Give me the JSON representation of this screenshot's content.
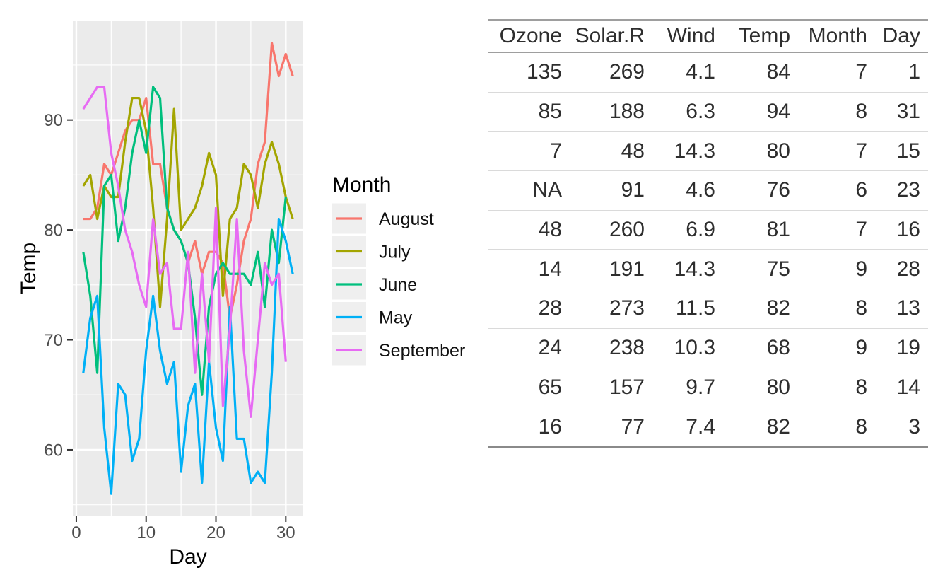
{
  "chart_data": {
    "type": "line",
    "title": "",
    "xlabel": "Day",
    "ylabel": "Temp",
    "legend_title": "Month",
    "legend_position": "right",
    "panel_background": "#EBEBEB",
    "grid_color": "#FFFFFF",
    "axis_text_color": "#4D4D4D",
    "tick_color": "#333333",
    "grid": true,
    "xlim": [
      -0.5,
      32.5
    ],
    "ylim": [
      53.95,
      99.05
    ],
    "x_major_ticks": [
      0,
      10,
      20,
      30
    ],
    "x_minor_ticks": [
      5,
      15,
      25
    ],
    "y_major_ticks": [
      60,
      70,
      80,
      90
    ],
    "y_minor_ticks": [
      55,
      65,
      75,
      85,
      95
    ],
    "series": [
      {
        "name": "August",
        "color": "#F8766D",
        "days": [
          1,
          2,
          3,
          4,
          5,
          6,
          7,
          8,
          9,
          10,
          11,
          12,
          13,
          14,
          15,
          16,
          17,
          18,
          19,
          20,
          21,
          22,
          23,
          24,
          25,
          26,
          27,
          28,
          29,
          30,
          31
        ],
        "temps": [
          81,
          81,
          82,
          86,
          85,
          87,
          89,
          90,
          90,
          92,
          86,
          86,
          82,
          80,
          79,
          77,
          79,
          76,
          78,
          78,
          77,
          72,
          75,
          79,
          81,
          86,
          88,
          97,
          94,
          96,
          94
        ]
      },
      {
        "name": "July",
        "color": "#A3A500",
        "days": [
          1,
          2,
          3,
          4,
          5,
          6,
          7,
          8,
          9,
          10,
          11,
          12,
          13,
          14,
          15,
          16,
          17,
          18,
          19,
          20,
          21,
          22,
          23,
          24,
          25,
          26,
          27,
          28,
          29,
          30,
          31
        ],
        "temps": [
          84,
          85,
          81,
          84,
          83,
          83,
          88,
          92,
          92,
          89,
          82,
          73,
          81,
          91,
          80,
          81,
          82,
          84,
          87,
          85,
          74,
          81,
          82,
          86,
          85,
          82,
          86,
          88,
          86,
          83,
          81
        ]
      },
      {
        "name": "June",
        "color": "#00BF7D",
        "days": [
          1,
          2,
          3,
          4,
          5,
          6,
          7,
          8,
          9,
          10,
          11,
          12,
          13,
          14,
          15,
          16,
          17,
          18,
          19,
          20,
          21,
          22,
          23,
          24,
          25,
          26,
          27,
          28,
          29,
          30
        ],
        "temps": [
          78,
          74,
          67,
          84,
          85,
          79,
          82,
          87,
          90,
          87,
          93,
          92,
          82,
          80,
          79,
          77,
          72,
          65,
          73,
          76,
          77,
          76,
          76,
          76,
          75,
          78,
          73,
          80,
          77,
          83
        ]
      },
      {
        "name": "May",
        "color": "#00B0F6",
        "days": [
          1,
          2,
          3,
          4,
          5,
          6,
          7,
          8,
          9,
          10,
          11,
          12,
          13,
          14,
          15,
          16,
          17,
          18,
          19,
          20,
          21,
          22,
          23,
          24,
          25,
          26,
          27,
          28,
          29,
          30,
          31
        ],
        "temps": [
          67,
          72,
          74,
          62,
          56,
          66,
          65,
          59,
          61,
          69,
          74,
          69,
          66,
          68,
          58,
          64,
          66,
          57,
          68,
          62,
          59,
          73,
          61,
          61,
          57,
          58,
          57,
          67,
          81,
          79,
          76
        ]
      },
      {
        "name": "September",
        "color": "#E76BF3",
        "days": [
          1,
          2,
          3,
          4,
          5,
          6,
          7,
          8,
          9,
          10,
          11,
          12,
          13,
          14,
          15,
          16,
          17,
          18,
          19,
          20,
          21,
          22,
          23,
          24,
          25,
          26,
          27,
          28,
          29,
          30
        ],
        "temps": [
          91,
          92,
          93,
          93,
          87,
          84,
          80,
          78,
          75,
          73,
          81,
          76,
          77,
          71,
          71,
          78,
          67,
          76,
          68,
          82,
          64,
          71,
          81,
          69,
          63,
          70,
          77,
          75,
          76,
          68
        ]
      }
    ]
  },
  "table": {
    "columns": [
      "Ozone",
      "Solar.R",
      "Wind",
      "Temp",
      "Month",
      "Day"
    ],
    "rows": [
      [
        "135",
        "269",
        "4.1",
        "84",
        "7",
        "1"
      ],
      [
        "85",
        "188",
        "6.3",
        "94",
        "8",
        "31"
      ],
      [
        "7",
        "48",
        "14.3",
        "80",
        "7",
        "15"
      ],
      [
        "NA",
        "91",
        "4.6",
        "76",
        "6",
        "23"
      ],
      [
        "48",
        "260",
        "6.9",
        "81",
        "7",
        "16"
      ],
      [
        "14",
        "191",
        "14.3",
        "75",
        "9",
        "28"
      ],
      [
        "28",
        "273",
        "11.5",
        "82",
        "8",
        "13"
      ],
      [
        "24",
        "238",
        "10.3",
        "68",
        "9",
        "19"
      ],
      [
        "65",
        "157",
        "9.7",
        "80",
        "8",
        "14"
      ],
      [
        "16",
        "77",
        "7.4",
        "82",
        "8",
        "3"
      ]
    ]
  }
}
